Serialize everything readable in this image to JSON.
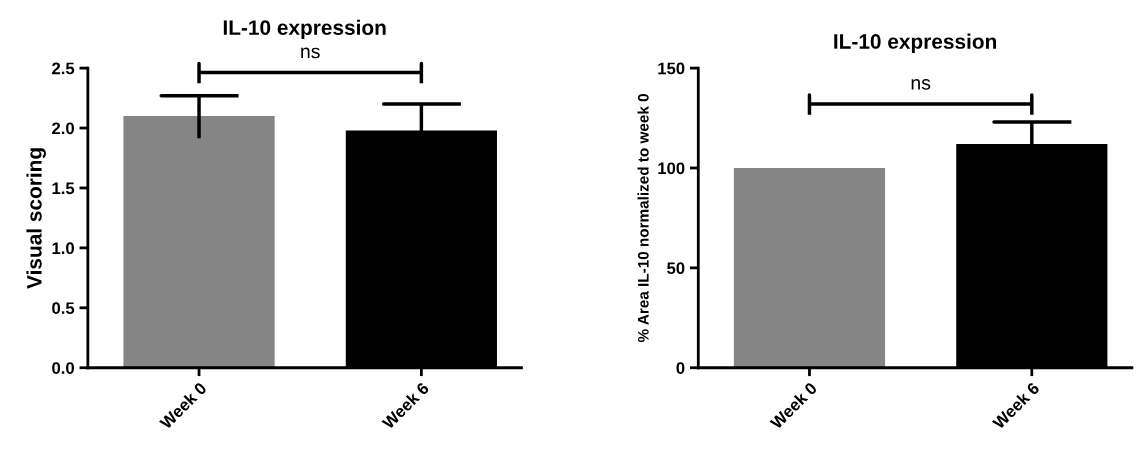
{
  "chart_data": [
    {
      "type": "bar",
      "title": "IL-10 expression",
      "ylabel": "Visual scoring",
      "categories": [
        "Week 0",
        "Week 6"
      ],
      "values": [
        2.1,
        1.98
      ],
      "errors": [
        0.17,
        0.22
      ],
      "colors": [
        "#858585",
        "#000000"
      ],
      "ylim": [
        0,
        2.5
      ],
      "yticks": [
        {
          "value": 0,
          "label": "0.0"
        },
        0.5,
        {
          "value": 1,
          "label": "1.0"
        },
        1.5,
        {
          "value": 2,
          "label": "2.0"
        },
        2.5
      ],
      "annotations": [
        "ns"
      ]
    },
    {
      "type": "bar",
      "title": "IL-10 expression",
      "ylabel": "% Area IL-10 normalized to week 0",
      "categories": [
        "Week 0",
        "Week 6"
      ],
      "values": [
        100,
        112
      ],
      "errors": [
        null,
        11
      ],
      "colors": [
        "#858585",
        "#000000"
      ],
      "ylim": [
        0,
        150
      ],
      "yticks": [
        0,
        50,
        100,
        150
      ],
      "annotations": [
        "ns"
      ]
    }
  ]
}
